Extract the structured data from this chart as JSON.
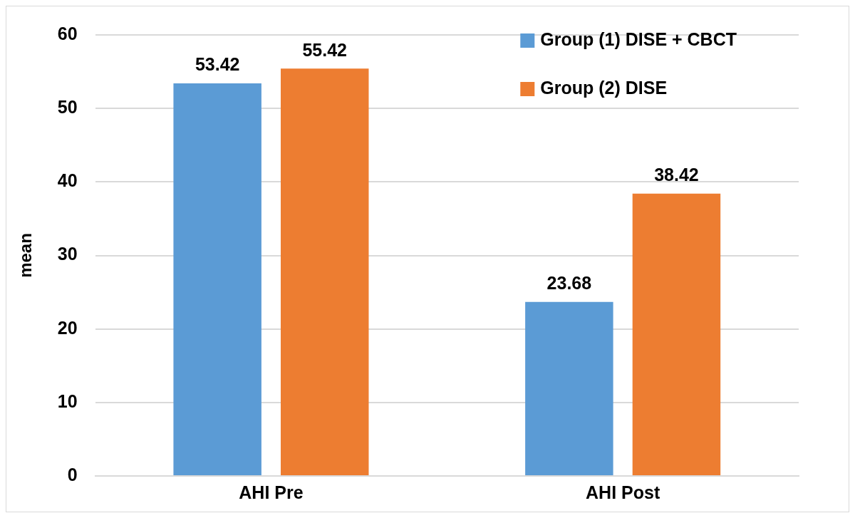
{
  "chart_data": {
    "type": "bar",
    "ylabel": "mean",
    "categories": [
      "AHI Pre",
      "AHI Post"
    ],
    "series": [
      {
        "name": "Group (1) DISE + CBCT",
        "color": "#5b9bd5",
        "values": [
          53.42,
          23.68
        ]
      },
      {
        "name": "Group (2) DISE",
        "color": "#ed7d31",
        "values": [
          55.42,
          38.42
        ]
      }
    ],
    "ylim": [
      0,
      60
    ],
    "yticks": [
      0,
      10,
      20,
      30,
      40,
      50,
      60
    ],
    "grid": "y",
    "legend": "top right",
    "data_labels": true
  }
}
